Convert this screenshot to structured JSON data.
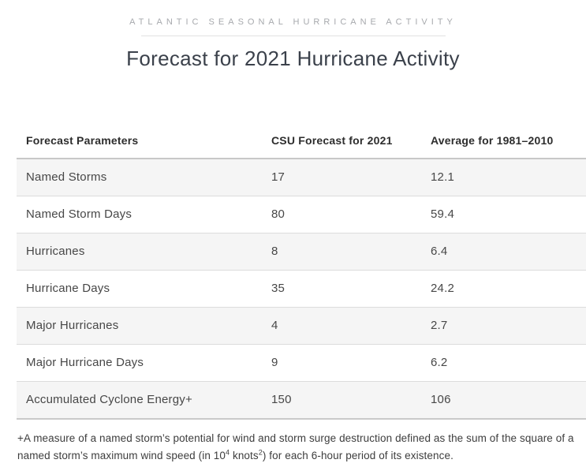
{
  "header": {
    "eyebrow": "ATLANTIC SEASONAL HURRICANE ACTIVITY",
    "title": "Forecast for 2021 Hurricane Activity"
  },
  "table": {
    "columns": [
      "Forecast Parameters",
      "CSU Forecast for 2021",
      "Average for 1981–2010"
    ],
    "rows": [
      {
        "parameter": "Named Storms",
        "forecast": "17",
        "average": "12.1"
      },
      {
        "parameter": "Named Storm Days",
        "forecast": "80",
        "average": "59.4"
      },
      {
        "parameter": "Hurricanes",
        "forecast": "8",
        "average": "6.4"
      },
      {
        "parameter": "Hurricane Days",
        "forecast": "35",
        "average": "24.2"
      },
      {
        "parameter": "Major Hurricanes",
        "forecast": "4",
        "average": "2.7"
      },
      {
        "parameter": "Major Hurricane Days",
        "forecast": "9",
        "average": "6.2"
      },
      {
        "parameter": "Accumulated Cyclone Energy+",
        "forecast": "150",
        "average": "106"
      }
    ]
  },
  "footnote": {
    "part1": "+A measure of a named storm’s potential for wind and storm surge destruction defined as the sum of the square of a named storm’s maximum wind speed (in 10",
    "sup1": "4",
    "part2": " knots",
    "sup2": "2",
    "part3": ") for each 6-hour period of its existence."
  },
  "colors": {
    "eyebrow_text": "#a7a9ad",
    "title_text": "#3b414b",
    "header_text": "#2d2d2d",
    "cell_text": "#474747",
    "row_stripe": "#f5f5f5",
    "border_light": "#dcdcdc",
    "border_strong": "#c8c8c8",
    "divider": "#e1e1e1"
  },
  "chart_data": {
    "type": "table",
    "title": "Forecast for 2021 Hurricane Activity",
    "columns": [
      "Forecast Parameters",
      "CSU Forecast for 2021",
      "Average for 1981–2010"
    ],
    "rows": [
      [
        "Named Storms",
        17,
        12.1
      ],
      [
        "Named Storm Days",
        80,
        59.4
      ],
      [
        "Hurricanes",
        8,
        6.4
      ],
      [
        "Hurricane Days",
        35,
        24.2
      ],
      [
        "Major Hurricanes",
        4,
        2.7
      ],
      [
        "Major Hurricane Days",
        9,
        6.2
      ],
      [
        "Accumulated Cyclone Energy+",
        150,
        106
      ]
    ]
  }
}
